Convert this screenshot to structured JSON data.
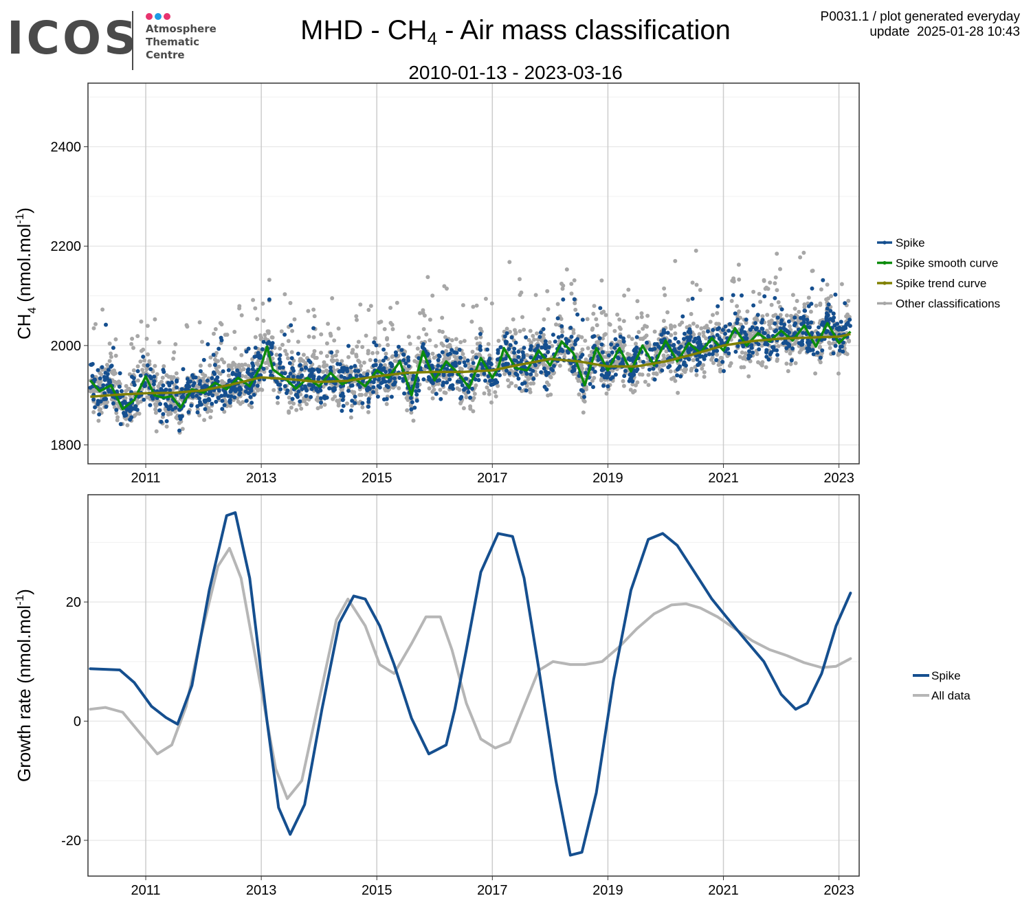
{
  "logo": {
    "wordmark": "ICOS",
    "lines": [
      "Atmosphere",
      "Thematic",
      "Centre"
    ],
    "dot_colors": [
      "#e8336e",
      "#1e9be5",
      "#e8336e"
    ]
  },
  "title": {
    "prefix": "MHD - CH",
    "subscript": "4",
    "suffix": " - Air mass classification"
  },
  "subtitle": "2010-01-13 - 2023-03-16",
  "meta": {
    "line1": "P0031.1 / plot generated everyday",
    "line2": "update  2025-01-28 10:43"
  },
  "chart_data": [
    {
      "type": "scatter",
      "ylabel_main": "CH",
      "ylabel_sub": "4",
      "ylabel_rest": " (nmol.mol",
      "ylabel_sup": "-1",
      "ylabel_close": ")",
      "xlim": [
        2010.0,
        2023.35
      ],
      "ylim": [
        1762,
        2528
      ],
      "x_ticks": [
        "2011",
        "2013",
        "2015",
        "2017",
        "2019",
        "2021",
        "2023"
      ],
      "x_tick_values": [
        2011,
        2013,
        2015,
        2017,
        2019,
        2021,
        2023
      ],
      "y_ticks": [
        1800,
        2000,
        2200,
        2400
      ],
      "legend_position": "right",
      "colors": {
        "spike": "#154f8f",
        "smooth": "#0c8c0c",
        "trend": "#808000",
        "other": "#a7a7a7"
      },
      "legend": [
        "Spike",
        "Spike smooth curve",
        "Spike trend curve",
        "Other classifications"
      ],
      "series": [
        {
          "name": "Spike smooth curve",
          "x": [
            2010.04,
            2010.2,
            2010.4,
            2010.6,
            2010.8,
            2011.0,
            2011.15,
            2011.3,
            2011.45,
            2011.6,
            2011.8,
            2012.0,
            2012.2,
            2012.4,
            2012.6,
            2012.8,
            2013.0,
            2013.1,
            2013.2,
            2013.4,
            2013.6,
            2013.8,
            2014.0,
            2014.2,
            2014.4,
            2014.6,
            2014.8,
            2015.0,
            2015.2,
            2015.4,
            2015.6,
            2015.8,
            2016.0,
            2016.2,
            2016.4,
            2016.6,
            2016.8,
            2017.0,
            2017.1,
            2017.2,
            2017.4,
            2017.6,
            2017.8,
            2018.0,
            2018.2,
            2018.4,
            2018.6,
            2018.8,
            2019.0,
            2019.2,
            2019.4,
            2019.6,
            2019.8,
            2020.0,
            2020.2,
            2020.4,
            2020.6,
            2020.8,
            2021.0,
            2021.2,
            2021.4,
            2021.6,
            2021.8,
            2022.0,
            2022.2,
            2022.4,
            2022.6,
            2022.8,
            2023.0,
            2023.2
          ],
          "values": [
            1930,
            1908,
            1920,
            1872,
            1890,
            1938,
            1900,
            1895,
            1898,
            1875,
            1912,
            1905,
            1925,
            1912,
            1935,
            1918,
            1960,
            1998,
            1952,
            1935,
            1913,
            1935,
            1918,
            1945,
            1922,
            1935,
            1918,
            1950,
            1935,
            1968,
            1900,
            1988,
            1930,
            1968,
            1945,
            1915,
            1975,
            1935,
            1955,
            1995,
            1955,
            1950,
            1990,
            1960,
            2008,
            1985,
            1920,
            1995,
            1950,
            1995,
            1948,
            2000,
            1960,
            2010,
            1968,
            2005,
            1985,
            2015,
            1990,
            2035,
            2000,
            2025,
            2008,
            2030,
            2010,
            2040,
            1998,
            2045,
            2005,
            2028
          ]
        },
        {
          "name": "Spike trend curve",
          "x": [
            2010.04,
            2010.5,
            2011.0,
            2011.5,
            2012.0,
            2012.5,
            2013.0,
            2013.5,
            2014.0,
            2014.5,
            2015.0,
            2015.5,
            2016.0,
            2016.5,
            2017.0,
            2017.5,
            2018.0,
            2018.5,
            2019.0,
            2019.5,
            2020.0,
            2020.5,
            2021.0,
            2021.5,
            2022.0,
            2022.5,
            2023.0,
            2023.2
          ],
          "values": [
            1897,
            1901,
            1904,
            1905,
            1910,
            1922,
            1936,
            1932,
            1927,
            1929,
            1938,
            1945,
            1947,
            1947,
            1950,
            1962,
            1973,
            1968,
            1958,
            1958,
            1968,
            1983,
            2000,
            2009,
            2014,
            2016,
            2018,
            2023
          ]
        }
      ]
    },
    {
      "type": "line",
      "ylabel": "Growth rate (nmol.mol",
      "ylabel_sup": "-1",
      "ylabel_close": ")",
      "xlim": [
        2010.0,
        2023.35
      ],
      "ylim": [
        -26,
        38
      ],
      "x_ticks": [
        "2011",
        "2013",
        "2015",
        "2017",
        "2019",
        "2021",
        "2023"
      ],
      "x_tick_values": [
        2011,
        2013,
        2015,
        2017,
        2019,
        2021,
        2023
      ],
      "y_ticks": [
        -20,
        0,
        20
      ],
      "legend_position": "right",
      "series": [
        {
          "name": "Spike",
          "color": "#154f8f",
          "x": [
            2010.04,
            2010.3,
            2010.55,
            2010.8,
            2011.1,
            2011.35,
            2011.55,
            2011.8,
            2012.1,
            2012.4,
            2012.55,
            2012.8,
            2013.1,
            2013.3,
            2013.5,
            2013.75,
            2014.05,
            2014.35,
            2014.6,
            2014.8,
            2015.05,
            2015.3,
            2015.6,
            2015.9,
            2016.2,
            2016.35,
            2016.55,
            2016.8,
            2017.1,
            2017.35,
            2017.55,
            2017.8,
            2018.1,
            2018.35,
            2018.55,
            2018.8,
            2019.1,
            2019.4,
            2019.7,
            2019.95,
            2020.2,
            2020.5,
            2020.8,
            2021.05,
            2021.35,
            2021.7,
            2022.0,
            2022.25,
            2022.45,
            2022.7,
            2022.95,
            2023.2
          ],
          "values": [
            8.8,
            8.7,
            8.6,
            6.5,
            2.5,
            0.6,
            -0.5,
            6.0,
            22.0,
            34.5,
            35.0,
            24.0,
            0.0,
            -14.5,
            -19.0,
            -14.0,
            2.0,
            16.5,
            21.0,
            20.5,
            16.0,
            9.5,
            0.5,
            -5.5,
            -4.0,
            2.0,
            12.0,
            25.0,
            31.5,
            31.0,
            24.0,
            9.0,
            -10.0,
            -22.5,
            -22.0,
            -12.0,
            7.0,
            22.0,
            30.5,
            31.5,
            29.5,
            25.0,
            20.5,
            17.5,
            14.0,
            10.0,
            4.5,
            2.0,
            3.0,
            8.0,
            16.0,
            21.5
          ]
        },
        {
          "name": "All data",
          "color": "#b6b6b6",
          "x": [
            2010.04,
            2010.3,
            2010.6,
            2010.9,
            2011.2,
            2011.45,
            2011.7,
            2011.95,
            2012.25,
            2012.45,
            2012.65,
            2012.95,
            2013.25,
            2013.45,
            2013.7,
            2014.0,
            2014.3,
            2014.5,
            2014.8,
            2015.05,
            2015.3,
            2015.6,
            2015.85,
            2016.1,
            2016.3,
            2016.55,
            2016.8,
            2017.05,
            2017.3,
            2017.55,
            2017.8,
            2018.05,
            2018.35,
            2018.6,
            2018.9,
            2019.2,
            2019.5,
            2019.8,
            2020.1,
            2020.35,
            2020.6,
            2020.9,
            2021.2,
            2021.5,
            2021.8,
            2022.1,
            2022.4,
            2022.7,
            2022.95,
            2023.2
          ],
          "values": [
            2.0,
            2.3,
            1.5,
            -2.0,
            -5.5,
            -4.0,
            2.5,
            14.0,
            26.0,
            29.0,
            24.0,
            8.0,
            -8.0,
            -13.0,
            -10.0,
            3.5,
            17.0,
            20.5,
            16.0,
            9.5,
            8.0,
            13.0,
            17.5,
            17.5,
            12.0,
            3.0,
            -3.0,
            -4.5,
            -3.5,
            2.5,
            8.5,
            10.0,
            9.5,
            9.5,
            10.0,
            12.5,
            15.5,
            18.0,
            19.5,
            19.7,
            19.0,
            17.5,
            15.5,
            13.5,
            12.0,
            11.0,
            9.8,
            9.0,
            9.2,
            10.5
          ]
        }
      ],
      "legend": [
        "Spike",
        "All data"
      ]
    }
  ]
}
